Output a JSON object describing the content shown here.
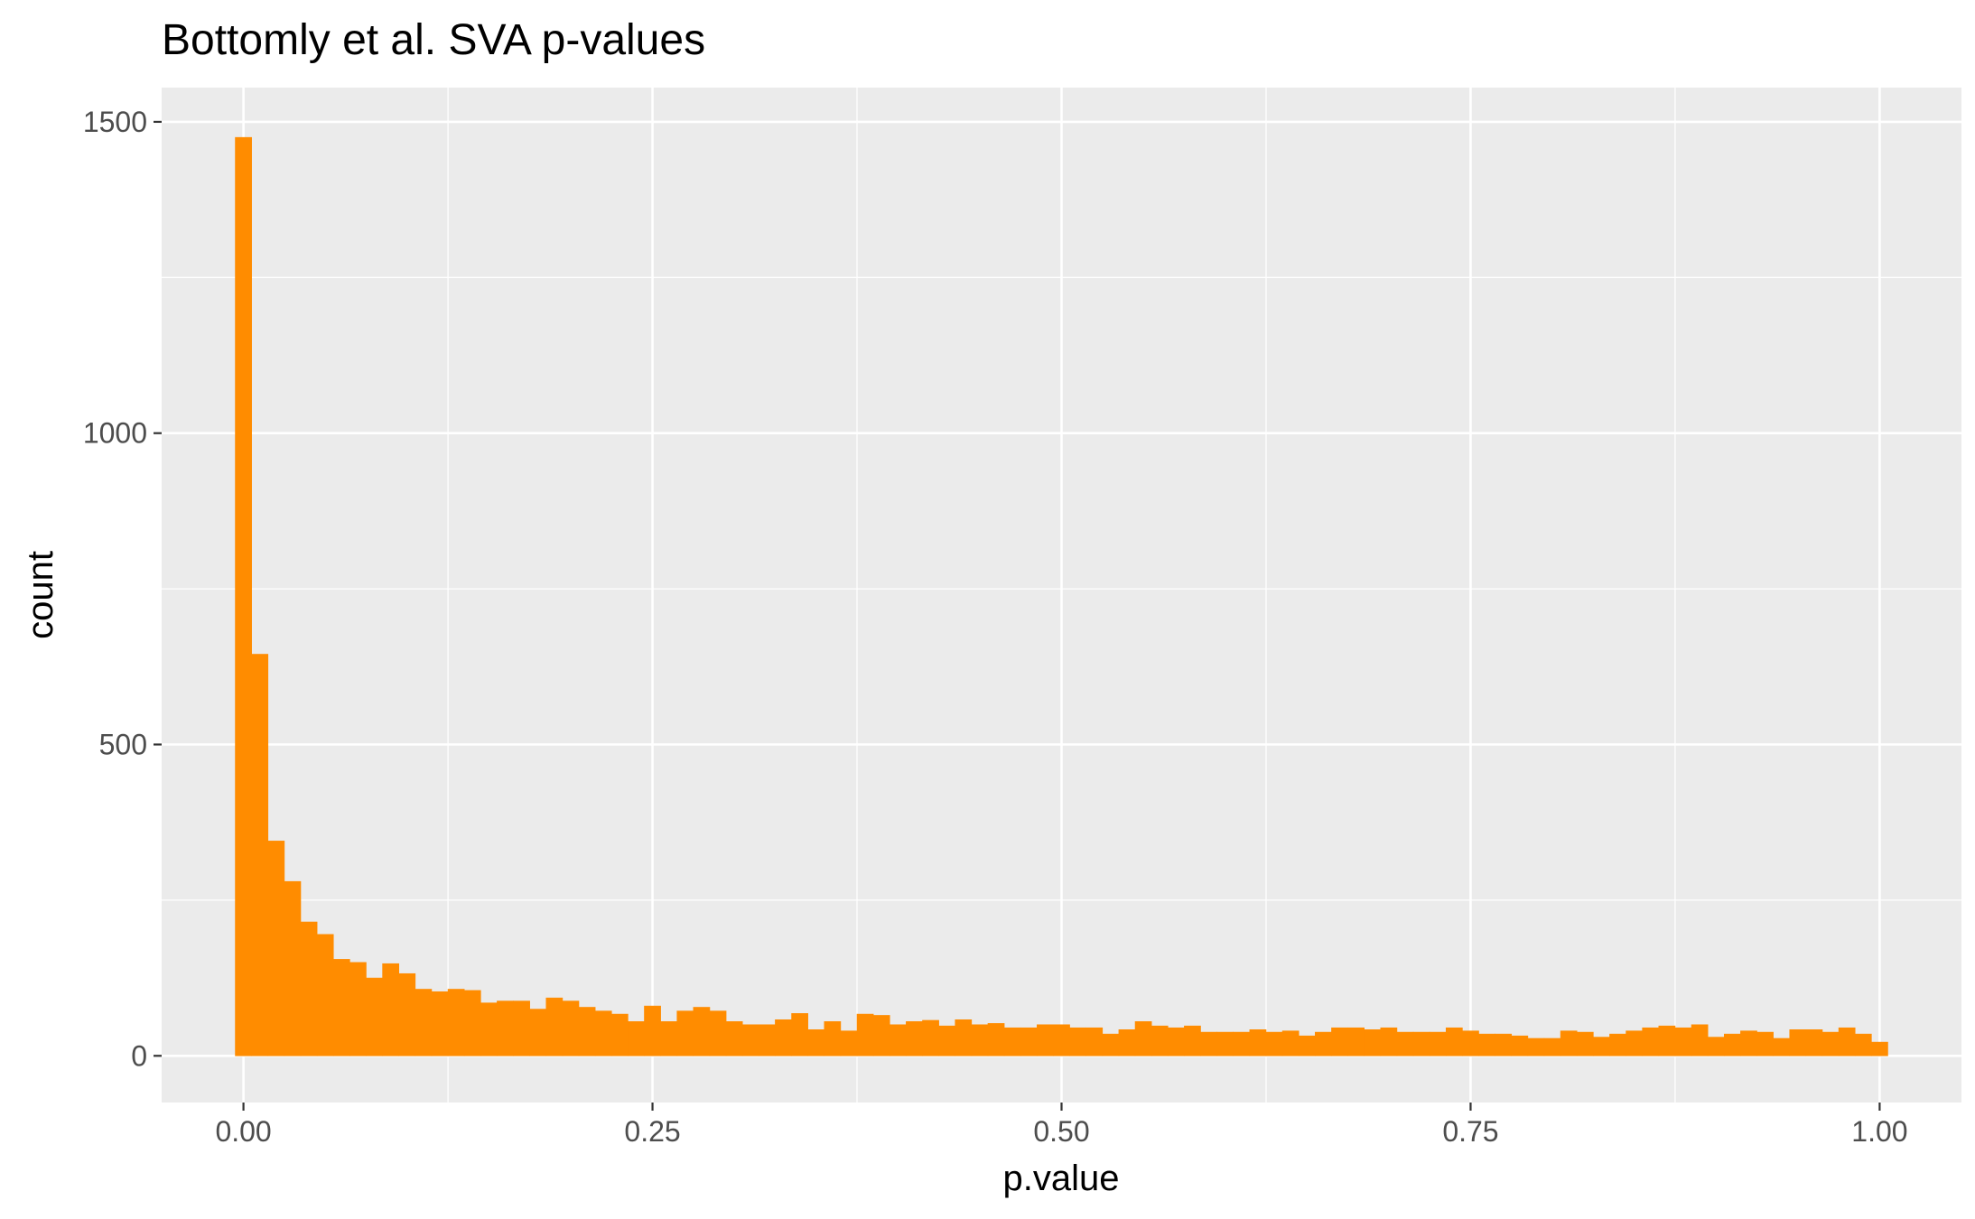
{
  "chart_data": {
    "type": "bar",
    "title": "Bottomly et al. SVA p-values",
    "xlabel": "p.value",
    "ylabel": "count",
    "xlim": [
      -0.05,
      1.05
    ],
    "ylim": [
      -75,
      1555
    ],
    "x_ticks": [
      0.0,
      0.25,
      0.5,
      0.75,
      1.0
    ],
    "x_tick_labels": [
      "0.00",
      "0.25",
      "0.50",
      "0.75",
      "1.00"
    ],
    "y_ticks": [
      0,
      500,
      1000,
      1500
    ],
    "y_tick_labels": [
      "0",
      "500",
      "1000",
      "1500"
    ],
    "grid": true,
    "panel_background": "#ebebeb",
    "grid_color": "#ffffff",
    "bar_color": "#ff8c00",
    "bins": 100,
    "bin_width": 0.01,
    "x": [
      0.0,
      0.01,
      0.02,
      0.03,
      0.04,
      0.05,
      0.06,
      0.07,
      0.08,
      0.09,
      0.1,
      0.11,
      0.12,
      0.13,
      0.14,
      0.15,
      0.16,
      0.17,
      0.18,
      0.19,
      0.2,
      0.21,
      0.22,
      0.23,
      0.24,
      0.25,
      0.26,
      0.27,
      0.28,
      0.29,
      0.3,
      0.31,
      0.32,
      0.33,
      0.34,
      0.35,
      0.36,
      0.37,
      0.38,
      0.39,
      0.4,
      0.41,
      0.42,
      0.43,
      0.44,
      0.45,
      0.46,
      0.47,
      0.48,
      0.49,
      0.5,
      0.51,
      0.52,
      0.53,
      0.54,
      0.55,
      0.56,
      0.57,
      0.58,
      0.59,
      0.6,
      0.61,
      0.62,
      0.63,
      0.64,
      0.65,
      0.66,
      0.67,
      0.68,
      0.69,
      0.7,
      0.71,
      0.72,
      0.73,
      0.74,
      0.75,
      0.76,
      0.77,
      0.78,
      0.79,
      0.8,
      0.81,
      0.82,
      0.83,
      0.84,
      0.85,
      0.86,
      0.87,
      0.88,
      0.89,
      0.9,
      0.91,
      0.92,
      0.93,
      0.94,
      0.95,
      0.96,
      0.97,
      0.98,
      0.99,
      1.0
    ],
    "values": [
      1475,
      645,
      345,
      280,
      215,
      195,
      155,
      150,
      125,
      148,
      132,
      107,
      103,
      107,
      105,
      85,
      88,
      88,
      75,
      93,
      88,
      78,
      72,
      67,
      55,
      80,
      55,
      72,
      78,
      72,
      55,
      50,
      50,
      58,
      68,
      42,
      55,
      40,
      67,
      65,
      50,
      55,
      57,
      48,
      58,
      50,
      52,
      45,
      45,
      50,
      50,
      45,
      45,
      35,
      42,
      55,
      48,
      45,
      48,
      38,
      38,
      38,
      42,
      38,
      40,
      32,
      38,
      45,
      45,
      42,
      45,
      38,
      38,
      38,
      45,
      40,
      35,
      35,
      32,
      28,
      28,
      40,
      38,
      30,
      35,
      40,
      45,
      48,
      45,
      50,
      30,
      35,
      40,
      38,
      28,
      42,
      42,
      38,
      45,
      35,
      22
    ]
  }
}
